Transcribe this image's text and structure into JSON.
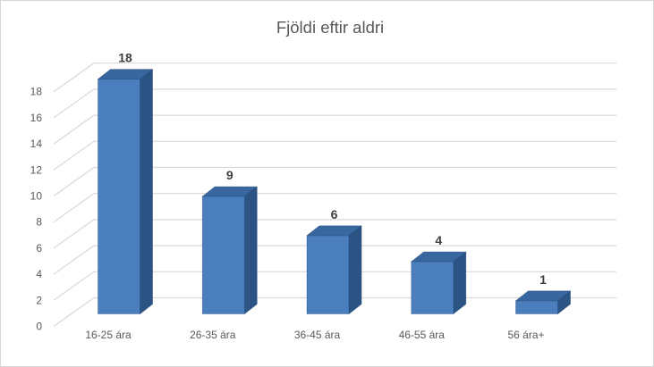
{
  "chart_data": {
    "type": "bar",
    "style": "3d-column",
    "title": "Fjöldi eftir aldri",
    "categories": [
      "16-25 ára",
      "26-35 ára",
      "36-45 ára",
      "46-55 ára",
      "56 ára+"
    ],
    "values": [
      18,
      9,
      6,
      4,
      1
    ],
    "data_labels": [
      "18",
      "9",
      "6",
      "4",
      "1"
    ],
    "xlabel": "",
    "ylabel": "",
    "ylim": [
      0,
      18
    ],
    "ytick_step": 2,
    "ytick_labels": [
      "0",
      "2",
      "4",
      "6",
      "8",
      "10",
      "12",
      "14",
      "16",
      "18"
    ],
    "grid": true,
    "legend_position": "none",
    "colors": {
      "bar_front": "#4a7ebc",
      "bar_top": "#38669e",
      "bar_side": "#2b5384",
      "bar_edge": "#24497a",
      "gridline": "#d9d9d9",
      "axis_text": "#595959",
      "data_label_text": "#3f3f3f",
      "title_text": "#595959",
      "chart_border": "#d7d7d7",
      "background": "#ffffff"
    }
  }
}
